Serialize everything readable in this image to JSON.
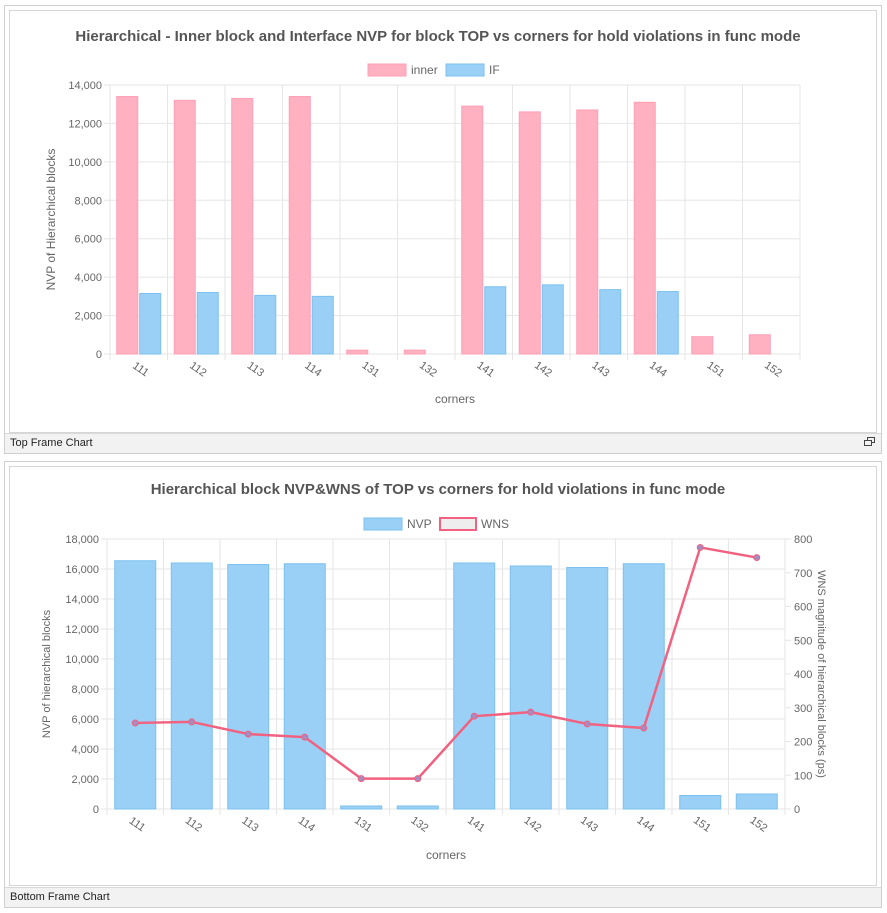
{
  "top_frame": {
    "caption": "Top Frame Chart",
    "icons": {
      "restore": "restore-window-icon"
    }
  },
  "bottom_frame": {
    "caption": "Bottom Frame Chart"
  },
  "colors": {
    "inner_fill": "#ffb1c1",
    "inner_stroke": "#ff9fb6",
    "if_fill": "#9ad0f5",
    "if_stroke": "#7cc1ef",
    "wns_line": "#f2617f",
    "wns_point": "#a78bc0",
    "grid": "#e6e6e6",
    "text": "#666666",
    "title": "#555555"
  },
  "chart_data": [
    {
      "type": "bar",
      "title": "Hierarchical - Inner block and Interface NVP for block TOP vs corners for hold violations in func mode",
      "xlabel": "corners",
      "ylabel": "NVP of Hierarchical blocks",
      "legend_position": "top-center",
      "categories": [
        "111",
        "112",
        "113",
        "114",
        "131",
        "132",
        "141",
        "142",
        "143",
        "144",
        "151",
        "152"
      ],
      "y_ticks": [
        "0",
        "2,000",
        "4,000",
        "6,000",
        "8,000",
        "10,000",
        "12,000",
        "14,000"
      ],
      "ylim": [
        0,
        14000
      ],
      "series": [
        {
          "name": "inner",
          "values": [
            13400,
            13200,
            13300,
            13400,
            200,
            200,
            12900,
            12600,
            12700,
            13100,
            900,
            1000
          ]
        },
        {
          "name": "IF",
          "values": [
            3150,
            3200,
            3050,
            3000,
            0,
            0,
            3500,
            3600,
            3350,
            3250,
            0,
            0
          ]
        }
      ]
    },
    {
      "type": "bar",
      "title": "Hierarchical block NVP&WNS of TOP vs corners for hold violations in func mode",
      "xlabel": "corners",
      "ylabel": "NVP of hierarchical blocks",
      "y2label": "WNS magnitude of hierarchical blocks (ps)",
      "legend_position": "top-center",
      "categories": [
        "111",
        "112",
        "113",
        "114",
        "131",
        "132",
        "141",
        "142",
        "143",
        "144",
        "151",
        "152"
      ],
      "y_ticks": [
        "0",
        "2,000",
        "4,000",
        "6,000",
        "8,000",
        "10,000",
        "12,000",
        "14,000",
        "16,000",
        "18,000"
      ],
      "y2_ticks": [
        "0",
        "100",
        "200",
        "300",
        "400",
        "500",
        "600",
        "700",
        "800"
      ],
      "ylim": [
        0,
        18000
      ],
      "y2lim": [
        0,
        800
      ],
      "series": [
        {
          "name": "NVP",
          "type": "bar",
          "axis": "left",
          "values": [
            16550,
            16400,
            16300,
            16350,
            200,
            200,
            16400,
            16200,
            16100,
            16350,
            900,
            1000
          ]
        },
        {
          "name": "WNS",
          "type": "line",
          "axis": "right",
          "values": [
            255,
            258,
            222,
            213,
            90,
            90,
            275,
            287,
            252,
            240,
            775,
            745
          ]
        }
      ]
    }
  ]
}
